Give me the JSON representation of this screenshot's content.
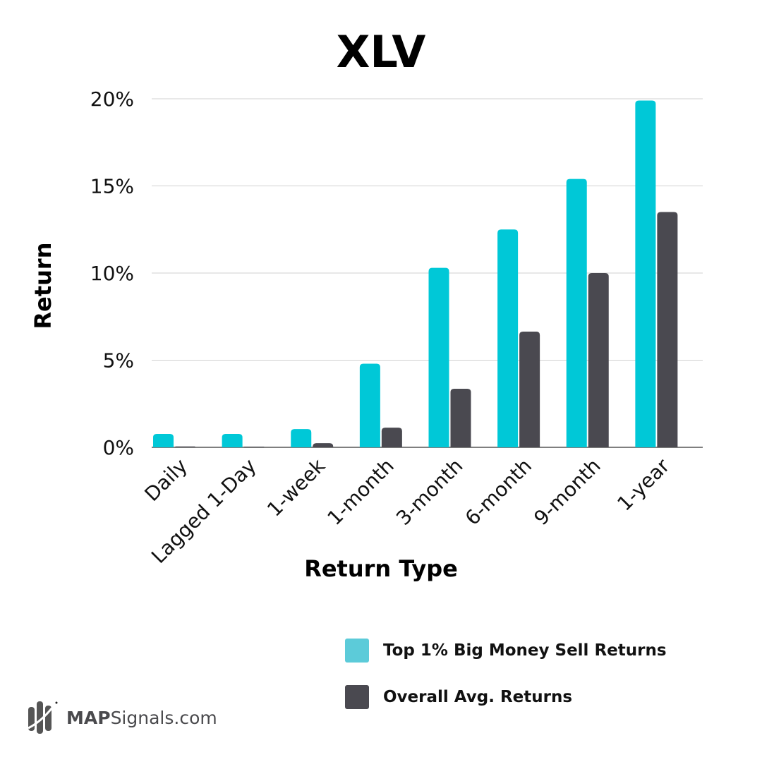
{
  "chart_data": {
    "type": "bar",
    "title": "XLV",
    "xlabel": "Return Type",
    "ylabel": "Return",
    "ylim": [
      0,
      20
    ],
    "yticks": [
      0,
      5,
      10,
      15,
      20
    ],
    "ytick_labels": [
      "0%",
      "5%",
      "10%",
      "15%",
      "20%"
    ],
    "grid": true,
    "categories": [
      "Daily",
      "Lagged 1-Day",
      "1-week",
      "1-month",
      "3-month",
      "6-month",
      "9-month",
      "1-year"
    ],
    "series": [
      {
        "name": "Top 1% Big Money Sell Returns",
        "color": "#00c8d7",
        "values": [
          0.77,
          0.77,
          1.05,
          4.8,
          10.3,
          12.5,
          15.4,
          19.9
        ]
      },
      {
        "name": "Overall Avg. Returns",
        "color": "#4a4950",
        "values": [
          0.05,
          0.04,
          0.24,
          1.13,
          3.36,
          6.64,
          10.0,
          13.5
        ]
      }
    ],
    "legend_position": "bottom-right"
  },
  "legend": {
    "items": [
      {
        "label": "Top 1% Big Money Sell Returns",
        "color": "#5ccbd9"
      },
      {
        "label": "Overall Avg. Returns",
        "color": "#4a4950"
      }
    ]
  },
  "logo": {
    "bold": "MAP",
    "rest": "Signals.com"
  }
}
